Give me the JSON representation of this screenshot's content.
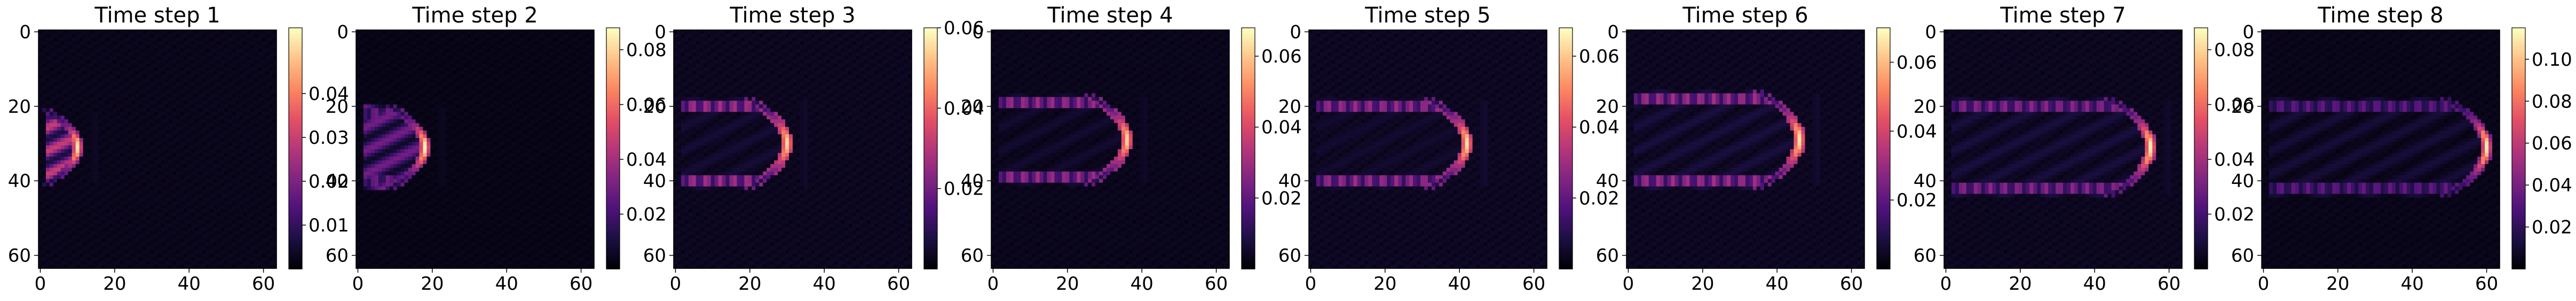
{
  "colormap": "magma",
  "colors": {
    "cmap_stops": [
      "#000004",
      "#1c1044",
      "#4f127b",
      "#812581",
      "#b5367a",
      "#e55064",
      "#fb8761",
      "#fec287",
      "#fcfdbf"
    ]
  },
  "chart_data": [
    {
      "type": "heatmap",
      "title": "Time step 1",
      "xlabel": "",
      "ylabel": "",
      "x_ticks": [
        "0",
        "20",
        "40",
        "60"
      ],
      "y_ticks": [
        "0",
        "20",
        "40",
        "60"
      ],
      "xlim": [
        0,
        63
      ],
      "ylim": [
        63,
        0
      ],
      "colorbar": {
        "range": [
          0,
          0.055
        ],
        "ticks": [
          0.01,
          0.02,
          0.03,
          0.04
        ],
        "tick_labels": [
          "0.01",
          "0.02",
          "0.03",
          "0.04"
        ]
      },
      "field": {
        "front_x": 10,
        "front_y": 31,
        "width": 10,
        "peak": 0.052,
        "rim": 0.018,
        "interior": 0.03,
        "wake": 0.003
      }
    },
    {
      "type": "heatmap",
      "title": "Time step 2",
      "xlabel": "",
      "ylabel": "",
      "x_ticks": [
        "0",
        "20",
        "40",
        "60"
      ],
      "y_ticks": [
        "0",
        "20",
        "40",
        "60"
      ],
      "xlim": [
        0,
        63
      ],
      "ylim": [
        63,
        0
      ],
      "colorbar": {
        "range": [
          0,
          0.088
        ],
        "ticks": [
          0.02,
          0.04,
          0.06,
          0.08
        ],
        "tick_labels": [
          "0.02",
          "0.04",
          "0.06",
          "0.08"
        ]
      },
      "field": {
        "front_x": 18,
        "front_y": 31,
        "width": 11,
        "peak": 0.085,
        "rim": 0.03,
        "interior": 0.03,
        "wake": 0.004
      }
    },
    {
      "type": "heatmap",
      "title": "Time step 3",
      "xlabel": "",
      "ylabel": "",
      "x_ticks": [
        "0",
        "20",
        "40",
        "60"
      ],
      "y_ticks": [
        "0",
        "20",
        "40",
        "60"
      ],
      "xlim": [
        0,
        63
      ],
      "ylim": [
        63,
        0
      ],
      "colorbar": {
        "range": [
          0,
          0.06
        ],
        "ticks": [
          0.02,
          0.04,
          0.06
        ],
        "tick_labels": [
          "0.02",
          "0.04",
          "0.06"
        ]
      },
      "field": {
        "front_x": 30,
        "front_y": 30,
        "width": 12,
        "peak": 0.055,
        "rim": 0.028,
        "interior": 0.006,
        "wake": 0.004
      }
    },
    {
      "type": "heatmap",
      "title": "Time step 4",
      "xlabel": "",
      "ylabel": "",
      "x_ticks": [
        "0",
        "20",
        "40",
        "60"
      ],
      "y_ticks": [
        "0",
        "20",
        "40",
        "60"
      ],
      "xlim": [
        0,
        63
      ],
      "ylim": [
        63,
        0
      ],
      "colorbar": {
        "range": [
          0,
          0.068
        ],
        "ticks": [
          0.02,
          0.04,
          0.06
        ],
        "tick_labels": [
          "0.02",
          "0.04",
          "0.06"
        ]
      },
      "field": {
        "front_x": 36,
        "front_y": 29,
        "width": 12,
        "peak": 0.062,
        "rim": 0.03,
        "interior": 0.006,
        "wake": 0.004
      }
    },
    {
      "type": "heatmap",
      "title": "Time step 5",
      "xlabel": "",
      "ylabel": "",
      "x_ticks": [
        "0",
        "20",
        "40",
        "60"
      ],
      "y_ticks": [
        "0",
        "20",
        "40",
        "60"
      ],
      "xlim": [
        0,
        63
      ],
      "ylim": [
        63,
        0
      ],
      "colorbar": {
        "range": [
          0,
          0.068
        ],
        "ticks": [
          0.02,
          0.04,
          0.06
        ],
        "tick_labels": [
          "0.02",
          "0.04",
          "0.06"
        ]
      },
      "field": {
        "front_x": 42,
        "front_y": 30,
        "width": 12,
        "peak": 0.064,
        "rim": 0.03,
        "interior": 0.006,
        "wake": 0.005
      }
    },
    {
      "type": "heatmap",
      "title": "Time step 6",
      "xlabel": "",
      "ylabel": "",
      "x_ticks": [
        "0",
        "20",
        "40",
        "60"
      ],
      "y_ticks": [
        "0",
        "20",
        "40",
        "60"
      ],
      "xlim": [
        0,
        63
      ],
      "ylim": [
        63,
        0
      ],
      "colorbar": {
        "range": [
          0,
          0.07
        ],
        "ticks": [
          0.02,
          0.04,
          0.06
        ],
        "tick_labels": [
          "0.02",
          "0.04",
          "0.06"
        ]
      },
      "field": {
        "front_x": 46,
        "front_y": 29,
        "width": 13,
        "peak": 0.066,
        "rim": 0.032,
        "interior": 0.008,
        "wake": 0.005
      }
    },
    {
      "type": "heatmap",
      "title": "Time step 7",
      "xlabel": "",
      "ylabel": "",
      "x_ticks": [
        "0",
        "20",
        "40",
        "60"
      ],
      "y_ticks": [
        "0",
        "20",
        "40",
        "60"
      ],
      "xlim": [
        0,
        63
      ],
      "ylim": [
        63,
        0
      ],
      "colorbar": {
        "range": [
          0,
          0.088
        ],
        "ticks": [
          0.02,
          0.04,
          0.06,
          0.08
        ],
        "tick_labels": [
          "0.02",
          "0.04",
          "0.06",
          "0.08"
        ]
      },
      "field": {
        "front_x": 55,
        "front_y": 31,
        "width": 13,
        "peak": 0.085,
        "rim": 0.035,
        "interior": 0.01,
        "wake": 0.006
      }
    },
    {
      "type": "heatmap",
      "title": "Time step 8",
      "xlabel": "",
      "ylabel": "",
      "x_ticks": [
        "0",
        "20",
        "40",
        "60"
      ],
      "y_ticks": [
        "0",
        "20",
        "40",
        "60"
      ],
      "xlim": [
        0,
        63
      ],
      "ylim": [
        63,
        0
      ],
      "colorbar": {
        "range": [
          0,
          0.115
        ],
        "ticks": [
          0.02,
          0.04,
          0.06,
          0.08,
          0.1
        ],
        "tick_labels": [
          "0.02",
          "0.04",
          "0.06",
          "0.08",
          "0.10"
        ]
      },
      "field": {
        "front_x": 60,
        "front_y": 31,
        "width": 13,
        "peak": 0.11,
        "rim": 0.035,
        "interior": 0.012,
        "wake": 0.006
      }
    }
  ]
}
